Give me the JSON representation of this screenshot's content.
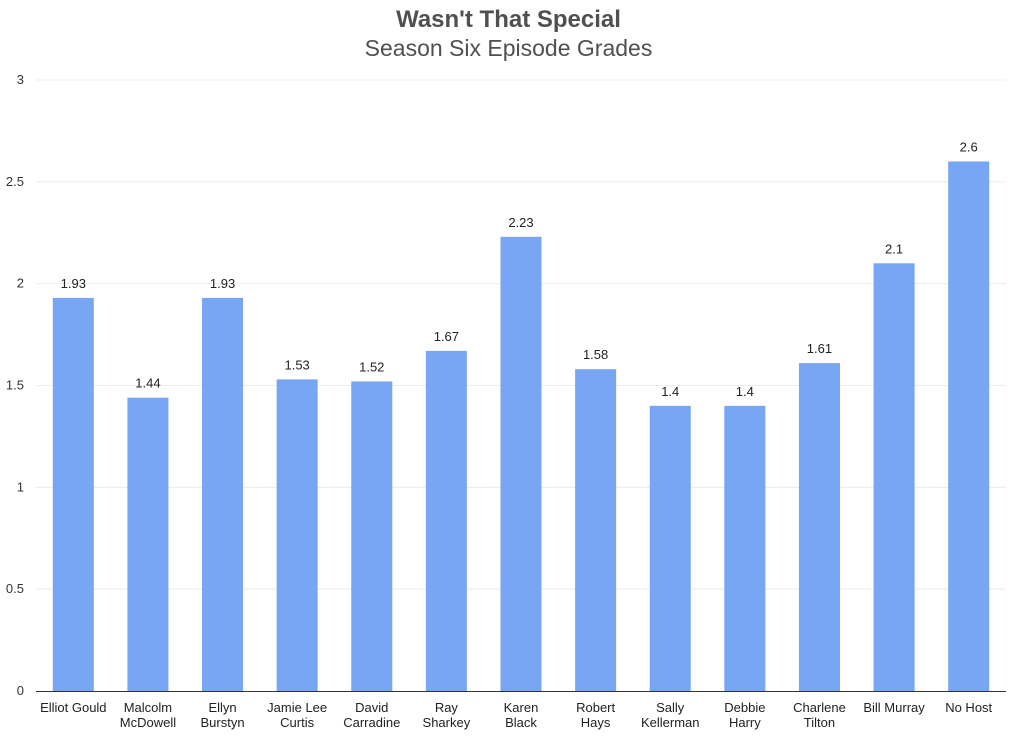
{
  "chart_data": {
    "type": "bar",
    "title": "Wasn't That Special",
    "subtitle": "Season Six Episode Grades",
    "xlabel": "",
    "ylabel": "",
    "ylim": [
      0,
      3
    ],
    "yticks": [
      "0",
      "0.5",
      "1",
      "1.5",
      "2",
      "2.5",
      "3"
    ],
    "grid": true,
    "legend": "none",
    "bar_color": "#78a6f5",
    "categories": [
      [
        "Elliot Gould"
      ],
      [
        "Malcolm",
        "McDowell"
      ],
      [
        "Ellyn",
        "Burstyn"
      ],
      [
        "Jamie Lee",
        "Curtis"
      ],
      [
        "David",
        "Carradine"
      ],
      [
        "Ray",
        "Sharkey"
      ],
      [
        "Karen",
        "Black"
      ],
      [
        "Robert",
        "Hays"
      ],
      [
        "Sally",
        "Kellerman"
      ],
      [
        "Debbie",
        "Harry"
      ],
      [
        "Charlene",
        "Tilton"
      ],
      [
        "Bill Murray"
      ],
      [
        "No Host"
      ]
    ],
    "values": [
      1.93,
      1.44,
      1.93,
      1.53,
      1.52,
      1.67,
      2.23,
      1.58,
      1.4,
      1.4,
      1.61,
      2.1,
      2.6
    ],
    "data_labels": [
      "1.93",
      "1.44",
      "1.93",
      "1.53",
      "1.52",
      "1.67",
      "2.23",
      "1.58",
      "1.4",
      "1.4",
      "1.61",
      "2.1",
      "2.6"
    ]
  }
}
